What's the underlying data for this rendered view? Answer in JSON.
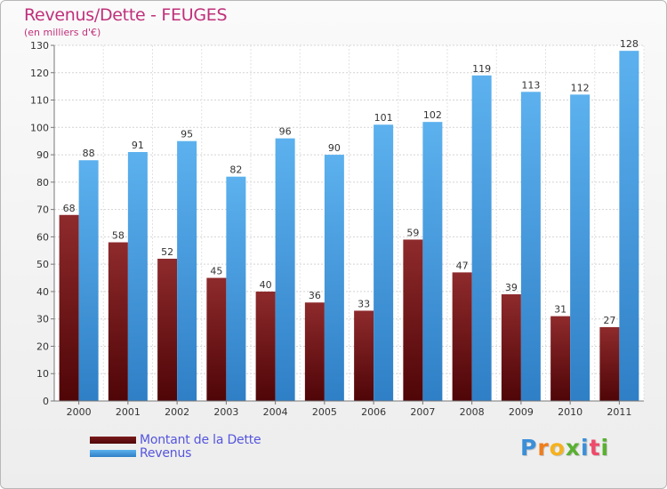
{
  "header": {
    "title": "Revenus/Dette - FEUGES",
    "subtitle": "(en milliers d'€)"
  },
  "chart_data": {
    "type": "bar",
    "categories": [
      "2000",
      "2001",
      "2002",
      "2003",
      "2004",
      "2005",
      "2006",
      "2007",
      "2008",
      "2009",
      "2010",
      "2011"
    ],
    "series": [
      {
        "name": "Montant de la Dette",
        "color": "#7a1a1c",
        "values": [
          68,
          58,
          52,
          45,
          40,
          36,
          33,
          59,
          47,
          39,
          31,
          27
        ]
      },
      {
        "name": "Revenus",
        "color": "#4ea5e6",
        "values": [
          88,
          91,
          95,
          82,
          96,
          90,
          101,
          102,
          119,
          113,
          112,
          128
        ]
      }
    ],
    "ylim": [
      0,
      130
    ],
    "yticks": [
      0,
      10,
      20,
      30,
      40,
      50,
      60,
      70,
      80,
      90,
      100,
      110,
      120,
      130
    ],
    "grid": true,
    "legend": "bottom-left"
  },
  "legend": {
    "items": [
      {
        "label": "Montant de la Dette",
        "color": "#5e0e10"
      },
      {
        "label": "Revenus",
        "color": "#4ea5e6"
      }
    ]
  },
  "logo": {
    "letters": [
      "P",
      "r",
      "o",
      "x",
      "i",
      "t",
      "i"
    ],
    "colors": [
      "#3b8fd8",
      "#f07d1a",
      "#f5b21d",
      "#5ab031",
      "#3b8fd8",
      "#ef4a6a",
      "#5ab031"
    ]
  }
}
